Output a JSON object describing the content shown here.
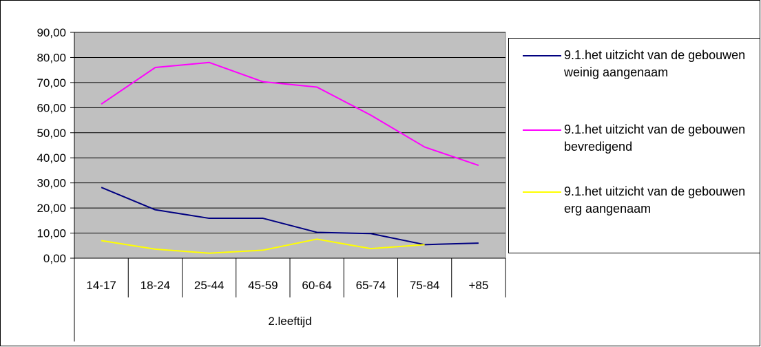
{
  "chart_data": {
    "type": "line",
    "categories": [
      "14-17",
      "18-24",
      "25-44",
      "45-59",
      "60-64",
      "65-74",
      "75-84",
      "+85"
    ],
    "xlabel": "2.leeftijd",
    "ylabel": "",
    "ylim": [
      0,
      90
    ],
    "y_ticks": [
      "0,00",
      "10,00",
      "20,00",
      "30,00",
      "40,00",
      "50,00",
      "60,00",
      "70,00",
      "80,00",
      "90,00"
    ],
    "y_tick_values": [
      0,
      10,
      20,
      30,
      40,
      50,
      60,
      70,
      80,
      90
    ],
    "grid": true,
    "plot_background": "#C0C0C0",
    "legend_position": "right",
    "series": [
      {
        "name": "9.1.het uitzicht van de gebouwen weinig aangenaam",
        "color": "#000080",
        "values": [
          28.2,
          19.3,
          15.9,
          15.9,
          10.3,
          9.8,
          5.4,
          6.0
        ]
      },
      {
        "name": "9.1.het uitzicht van de gebouwen bevredigend",
        "color": "#FF00FF",
        "values": [
          61.4,
          76.0,
          78.0,
          70.3,
          68.2,
          57.0,
          44.3,
          37.0
        ]
      },
      {
        "name": "9.1.het uitzicht van de gebouwen erg aangenaam",
        "color": "#FFFF00",
        "values": [
          7.0,
          3.6,
          2.0,
          3.2,
          7.6,
          3.8,
          5.4,
          null
        ]
      }
    ]
  },
  "legend": {
    "items": [
      {
        "label": "9.1.het uitzicht van de gebouwen weinig aangenaam",
        "color": "#000080"
      },
      {
        "label": "9.1.het uitzicht van de gebouwen bevredigend",
        "color": "#FF00FF"
      },
      {
        "label": "9.1.het uitzicht van de gebouwen erg aangenaam",
        "color": "#FFFF00"
      }
    ]
  }
}
